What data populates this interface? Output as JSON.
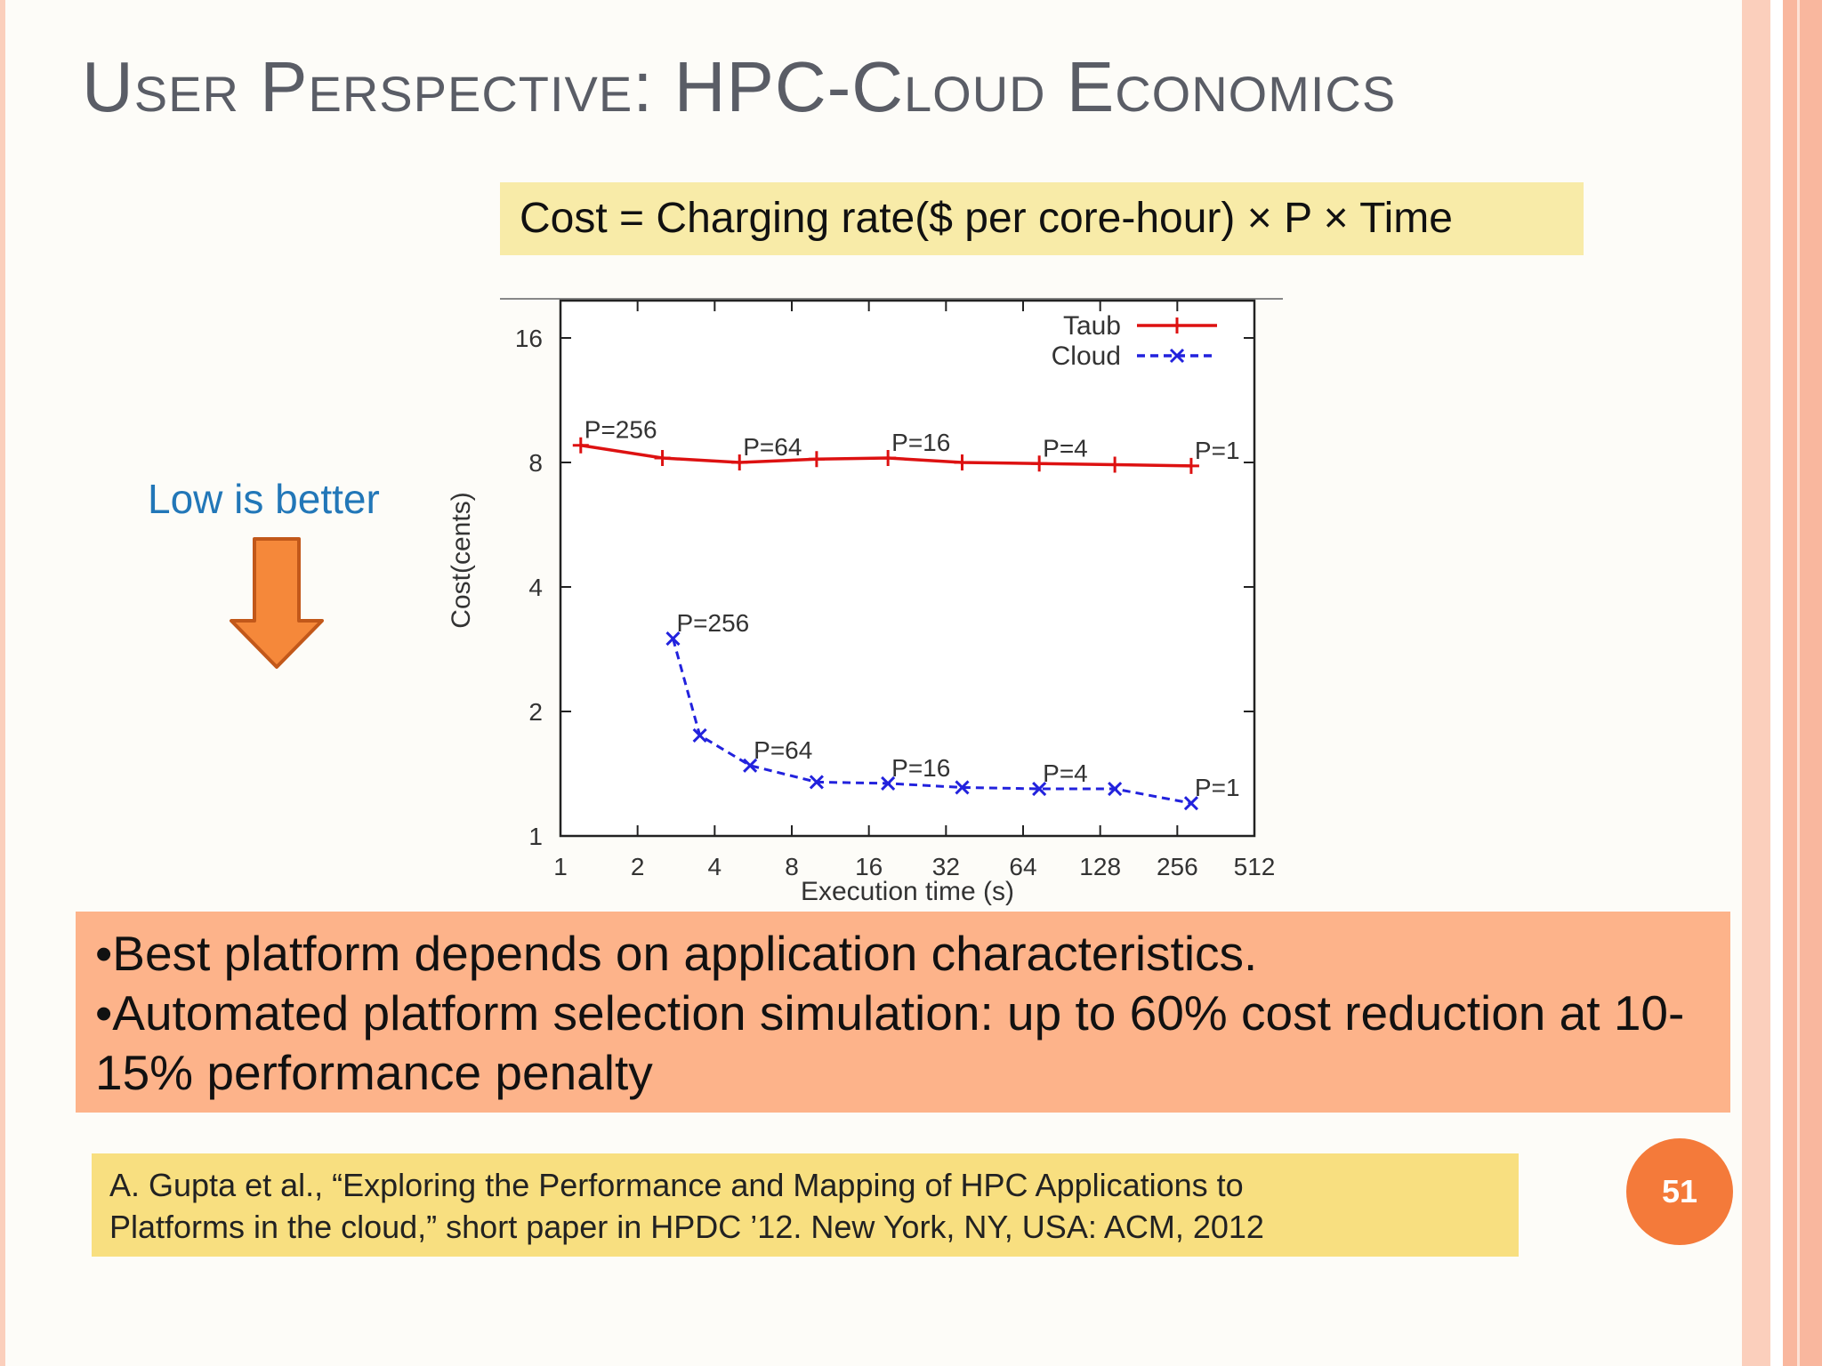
{
  "slide": {
    "title": "User Perspective: HPC-Cloud Economics",
    "formula": "Cost = Charging rate($ per core-hour) × P × Time",
    "annotation": "Low is better",
    "bullets": [
      "•Best platform depends on application characteristics.",
      "•Automated platform selection simulation: up to 60% cost reduction at 10-15% performance penalty"
    ],
    "reference_lines": [
      "A. Gupta et al., “Exploring the Performance and Mapping of HPC Applications to",
      "Platforms in the cloud,” short paper in HPDC ’12. New York, NY, USA: ACM, 2012"
    ],
    "page_number": "51"
  },
  "colors": {
    "title": "#5a5d66",
    "formula_bg": "#f8eba8",
    "bullet_bg": "#fdb38a",
    "reference_bg": "#f8df80",
    "page_badge": "#f47a3a",
    "arrow": "#f5883a",
    "annotation": "#2277b8",
    "taub_series": "#dd1111",
    "cloud_series": "#2222dd"
  },
  "chart_data": {
    "type": "line",
    "xlabel": "Execution time (s)",
    "ylabel": "Cost(cents)",
    "x_scale": "log2",
    "y_scale": "log2",
    "xlim": [
      1,
      512
    ],
    "ylim": [
      1,
      16
    ],
    "x_ticks": [
      "1",
      "2",
      "4",
      "8",
      "16",
      "32",
      "64",
      "128",
      "256",
      "512"
    ],
    "y_ticks": [
      "1",
      "2",
      "4",
      "8",
      "16"
    ],
    "legend_position": "top-right",
    "series": [
      {
        "name": "Taub",
        "style": "solid",
        "marker": "plus",
        "color": "#dd1111",
        "points": [
          {
            "x": 1.2,
            "y": 8.8,
            "label": "P=256"
          },
          {
            "x": 2.5,
            "y": 8.2
          },
          {
            "x": 5,
            "y": 8.0,
            "label": "P=64"
          },
          {
            "x": 10,
            "y": 8.15
          },
          {
            "x": 19,
            "y": 8.2,
            "label": "P=16"
          },
          {
            "x": 37,
            "y": 8.0
          },
          {
            "x": 74,
            "y": 7.95,
            "label": "P=4"
          },
          {
            "x": 146,
            "y": 7.9
          },
          {
            "x": 290,
            "y": 7.85,
            "label": "P=1"
          }
        ]
      },
      {
        "name": "Cloud",
        "style": "dashed",
        "marker": "x",
        "color": "#2222dd",
        "points": [
          {
            "x": 2.75,
            "y": 3.0,
            "label": "P=256"
          },
          {
            "x": 3.5,
            "y": 1.75
          },
          {
            "x": 5.5,
            "y": 1.48,
            "label": "P=64"
          },
          {
            "x": 10,
            "y": 1.35
          },
          {
            "x": 19,
            "y": 1.34,
            "label": "P=16"
          },
          {
            "x": 37,
            "y": 1.31
          },
          {
            "x": 74,
            "y": 1.3,
            "label": "P=4"
          },
          {
            "x": 146,
            "y": 1.3
          },
          {
            "x": 290,
            "y": 1.2,
            "label": "P=1"
          }
        ]
      }
    ]
  }
}
